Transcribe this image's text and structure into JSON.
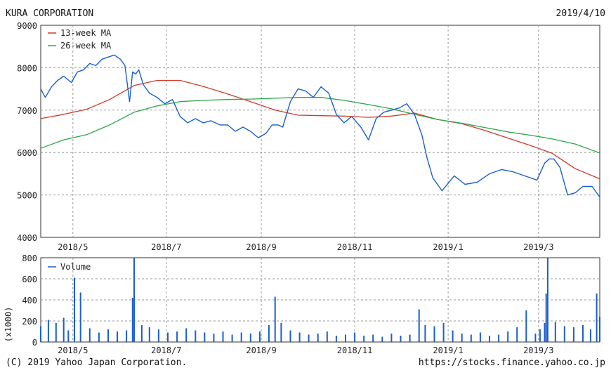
{
  "header": {
    "company": "KURA CORPORATION",
    "date": "2019/4/10"
  },
  "footer": {
    "copyright": "(C) 2019 Yahoo Japan Corporation.",
    "url": "https://stocks.finance.yahoo.co.jp"
  },
  "colors": {
    "price": "#1a5fd0",
    "ma13": "#d03a2a",
    "ma26": "#2aa64a",
    "volume": "#1a5fd0",
    "grid": "#aaaaaa"
  },
  "chart_data": [
    {
      "type": "line",
      "title": "",
      "ylim": [
        4000,
        9000
      ],
      "yticks": [
        4000,
        5000,
        6000,
        7000,
        8000,
        9000
      ],
      "xticks": [
        "2018/5",
        "2018/7",
        "2018/9",
        "2018/11",
        "2019/1",
        "2019/3"
      ],
      "xtick_dates": [
        "2018-05-01",
        "2018-07-01",
        "2018-09-01",
        "2018-11-01",
        "2019-01-01",
        "2019-03-01"
      ],
      "xlim": [
        "2018-04-10",
        "2019-04-10"
      ],
      "grid": true,
      "legend": "top-left",
      "series": [
        {
          "name": "13-week MA",
          "color": "#d03a2a",
          "x": [
            "2018-04-10",
            "2018-04-25",
            "2018-05-10",
            "2018-05-25",
            "2018-06-10",
            "2018-06-25",
            "2018-07-10",
            "2018-07-25",
            "2018-08-10",
            "2018-08-25",
            "2018-09-10",
            "2018-09-25",
            "2018-10-10",
            "2018-10-25",
            "2018-11-10",
            "2018-11-25",
            "2018-12-10",
            "2018-12-25",
            "2019-01-10",
            "2019-01-25",
            "2019-02-10",
            "2019-02-25",
            "2019-03-10",
            "2019-03-25",
            "2019-04-10"
          ],
          "values": [
            6800,
            6900,
            7020,
            7250,
            7580,
            7700,
            7700,
            7560,
            7380,
            7200,
            7000,
            6880,
            6870,
            6860,
            6830,
            6860,
            6930,
            6780,
            6680,
            6520,
            6330,
            6150,
            5980,
            5620,
            5380
          ]
        },
        {
          "name": "26-week MA",
          "color": "#2aa64a",
          "x": [
            "2018-04-10",
            "2018-04-25",
            "2018-05-10",
            "2018-05-25",
            "2018-06-10",
            "2018-06-25",
            "2018-07-10",
            "2018-07-25",
            "2018-08-10",
            "2018-08-25",
            "2018-09-10",
            "2018-09-25",
            "2018-10-10",
            "2018-10-25",
            "2018-11-10",
            "2018-11-25",
            "2018-12-10",
            "2018-12-25",
            "2019-01-10",
            "2019-01-25",
            "2019-02-10",
            "2019-02-25",
            "2019-03-10",
            "2019-03-25",
            "2019-04-10"
          ],
          "values": [
            6100,
            6300,
            6420,
            6650,
            6950,
            7100,
            7200,
            7230,
            7250,
            7260,
            7280,
            7300,
            7300,
            7230,
            7130,
            7030,
            6900,
            6780,
            6690,
            6590,
            6480,
            6400,
            6320,
            6200,
            5990
          ]
        },
        {
          "name": "Price",
          "color": "#1a5fd0",
          "x": [
            "2018-04-10",
            "2018-04-13",
            "2018-04-17",
            "2018-04-21",
            "2018-04-25",
            "2018-04-30",
            "2018-05-04",
            "2018-05-08",
            "2018-05-12",
            "2018-05-16",
            "2018-05-20",
            "2018-05-24",
            "2018-05-28",
            "2018-06-01",
            "2018-06-04",
            "2018-06-07",
            "2018-06-09",
            "2018-06-11",
            "2018-06-13",
            "2018-06-16",
            "2018-06-20",
            "2018-06-25",
            "2018-06-30",
            "2018-07-05",
            "2018-07-10",
            "2018-07-15",
            "2018-07-20",
            "2018-07-25",
            "2018-07-30",
            "2018-08-05",
            "2018-08-10",
            "2018-08-15",
            "2018-08-20",
            "2018-08-25",
            "2018-08-30",
            "2018-09-04",
            "2018-09-08",
            "2018-09-12",
            "2018-09-15",
            "2018-09-20",
            "2018-09-25",
            "2018-09-30",
            "2018-10-05",
            "2018-10-10",
            "2018-10-15",
            "2018-10-20",
            "2018-10-25",
            "2018-10-30",
            "2018-11-05",
            "2018-11-10",
            "2018-11-15",
            "2018-11-20",
            "2018-11-25",
            "2018-11-30",
            "2018-12-05",
            "2018-12-10",
            "2018-12-15",
            "2018-12-18",
            "2018-12-22",
            "2018-12-28",
            "2019-01-05",
            "2019-01-12",
            "2019-01-20",
            "2019-01-28",
            "2019-02-05",
            "2019-02-12",
            "2019-02-20",
            "2019-02-28",
            "2019-03-05",
            "2019-03-08",
            "2019-03-11",
            "2019-03-15",
            "2019-03-20",
            "2019-03-25",
            "2019-03-30",
            "2019-04-05",
            "2019-04-10"
          ],
          "values": [
            7500,
            7300,
            7550,
            7700,
            7800,
            7650,
            7900,
            7950,
            8100,
            8050,
            8200,
            8250,
            8300,
            8200,
            8050,
            7200,
            7900,
            7850,
            7950,
            7600,
            7400,
            7300,
            7150,
            7250,
            6850,
            6700,
            6800,
            6700,
            6750,
            6650,
            6650,
            6500,
            6600,
            6500,
            6350,
            6450,
            6650,
            6650,
            6600,
            7200,
            7500,
            7450,
            7300,
            7550,
            7400,
            6900,
            6700,
            6850,
            6600,
            6300,
            6800,
            6950,
            7000,
            7050,
            7150,
            6900,
            6400,
            5900,
            5400,
            5100,
            5450,
            5250,
            5300,
            5500,
            5600,
            5550,
            5450,
            5350,
            5750,
            5850,
            5850,
            5650,
            5000,
            5050,
            5200,
            5200,
            4950
          ]
        }
      ]
    },
    {
      "type": "bar",
      "title": "",
      "ylabel": "(x1000)",
      "ylim": [
        0,
        800
      ],
      "yticks": [
        0,
        200,
        400,
        600,
        800
      ],
      "xticks": [
        "2018/5",
        "2018/7",
        "2018/9",
        "2018/11",
        "2019/1",
        "2019/3"
      ],
      "xtick_dates": [
        "2018-05-01",
        "2018-07-01",
        "2018-09-01",
        "2018-11-01",
        "2019-01-01",
        "2019-03-01"
      ],
      "xlim": [
        "2018-04-10",
        "2019-04-10"
      ],
      "grid": true,
      "legend": "top-left",
      "series": [
        {
          "name": "Volume",
          "color": "#1a5fd0",
          "x": [
            "2018-04-10",
            "2018-04-15",
            "2018-04-20",
            "2018-04-25",
            "2018-04-28",
            "2018-05-02",
            "2018-05-06",
            "2018-05-12",
            "2018-05-18",
            "2018-05-24",
            "2018-05-30",
            "2018-06-05",
            "2018-06-09",
            "2018-06-10",
            "2018-06-15",
            "2018-06-20",
            "2018-06-26",
            "2018-07-02",
            "2018-07-08",
            "2018-07-14",
            "2018-07-20",
            "2018-07-26",
            "2018-08-01",
            "2018-08-07",
            "2018-08-13",
            "2018-08-19",
            "2018-08-25",
            "2018-08-31",
            "2018-09-06",
            "2018-09-10",
            "2018-09-14",
            "2018-09-20",
            "2018-09-26",
            "2018-10-02",
            "2018-10-08",
            "2018-10-14",
            "2018-10-20",
            "2018-10-26",
            "2018-11-01",
            "2018-11-07",
            "2018-11-13",
            "2018-11-19",
            "2018-11-25",
            "2018-12-01",
            "2018-12-07",
            "2018-12-13",
            "2018-12-17",
            "2018-12-23",
            "2018-12-29",
            "2019-01-04",
            "2019-01-10",
            "2019-01-16",
            "2019-01-22",
            "2019-01-28",
            "2019-02-03",
            "2019-02-09",
            "2019-02-15",
            "2019-02-21",
            "2019-02-27",
            "2019-03-02",
            "2019-03-05",
            "2019-03-06",
            "2019-03-07",
            "2019-03-12",
            "2019-03-18",
            "2019-03-24",
            "2019-03-30",
            "2019-04-04",
            "2019-04-08",
            "2019-04-10"
          ],
          "values": [
            150,
            210,
            180,
            230,
            110,
            610,
            470,
            130,
            90,
            120,
            100,
            110,
            420,
            800,
            160,
            140,
            120,
            90,
            100,
            130,
            110,
            90,
            80,
            100,
            70,
            90,
            80,
            100,
            160,
            430,
            180,
            110,
            90,
            70,
            80,
            100,
            60,
            70,
            90,
            60,
            70,
            50,
            80,
            60,
            70,
            310,
            160,
            150,
            180,
            110,
            80,
            70,
            90,
            60,
            70,
            100,
            140,
            300,
            80,
            120,
            180,
            460,
            800,
            190,
            150,
            140,
            160,
            120,
            460,
            240
          ]
        }
      ]
    }
  ]
}
